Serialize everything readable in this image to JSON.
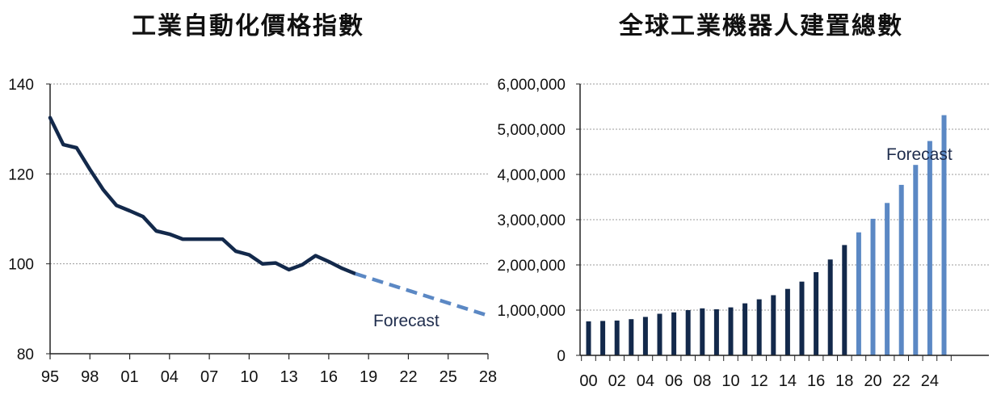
{
  "charts": [
    {
      "title": "工業自動化價格指數",
      "forecast_label": "Forecast",
      "colors": {
        "actual": "#13294b",
        "forecast": "#5b88c4"
      }
    },
    {
      "title": "全球工業機器人建置總數",
      "forecast_label": "Forecast",
      "colors": {
        "actual": "#13294b",
        "forecast": "#5b88c4"
      }
    }
  ],
  "chart_data": [
    {
      "type": "line",
      "title": "工業自動化價格指數",
      "xlabel": "",
      "ylabel": "",
      "x_tick_labels": [
        "95",
        "98",
        "01",
        "04",
        "07",
        "10",
        "13",
        "16",
        "19",
        "22",
        "25",
        "28"
      ],
      "y_tick_labels": [
        "80",
        "100",
        "120",
        "140"
      ],
      "ylim": [
        80,
        140
      ],
      "xlim": [
        1995,
        2028
      ],
      "grid": true,
      "series": [
        {
          "style": "solid",
          "x": [
            1995,
            1996,
            1997,
            1998,
            1999,
            2000,
            2001,
            2002,
            2003,
            2004,
            2005,
            2006,
            2007,
            2008,
            2009,
            2010,
            2011,
            2012,
            2013,
            2014,
            2015,
            2016,
            2017,
            2018
          ],
          "y": [
            132.5,
            126.5,
            125.8,
            121.0,
            116.5,
            113.0,
            111.8,
            110.5,
            107.3,
            106.6,
            105.5,
            105.5,
            105.5,
            105.5,
            102.8,
            102.0,
            100.0,
            100.2,
            98.7,
            99.8,
            101.8,
            100.5,
            99.0,
            97.8
          ]
        },
        {
          "style": "dashed",
          "x": [
            2018,
            2028
          ],
          "y": [
            97.8,
            88.5
          ]
        }
      ],
      "annotations": [
        "Forecast"
      ]
    },
    {
      "type": "bar",
      "title": "全球工業機器人建置總數",
      "xlabel": "",
      "ylabel": "",
      "x_tick_labels": [
        "00",
        "02",
        "04",
        "06",
        "08",
        "10",
        "12",
        "14",
        "16",
        "18",
        "20",
        "22",
        "24"
      ],
      "y_tick_labels": [
        "0",
        "1,000,000",
        "2,000,000",
        "3,000,000",
        "4,000,000",
        "5,000,000",
        "6,000,000"
      ],
      "ylim": [
        0,
        6000000
      ],
      "grid": true,
      "categories": [
        "00",
        "01",
        "02",
        "03",
        "04",
        "05",
        "06",
        "07",
        "08",
        "09",
        "10",
        "11",
        "12",
        "13",
        "14",
        "15",
        "16",
        "17",
        "18",
        "19",
        "20",
        "21",
        "22",
        "23",
        "24",
        "25"
      ],
      "values": [
        751000,
        760000,
        770000,
        800000,
        850000,
        920000,
        950000,
        1000000,
        1040000,
        1020000,
        1060000,
        1150000,
        1240000,
        1330000,
        1470000,
        1630000,
        1840000,
        2120000,
        2440000,
        2720000,
        3020000,
        3370000,
        3770000,
        4210000,
        4740000,
        5310000
      ],
      "forecast_from": "19",
      "annotations": [
        "Forecast"
      ]
    }
  ]
}
